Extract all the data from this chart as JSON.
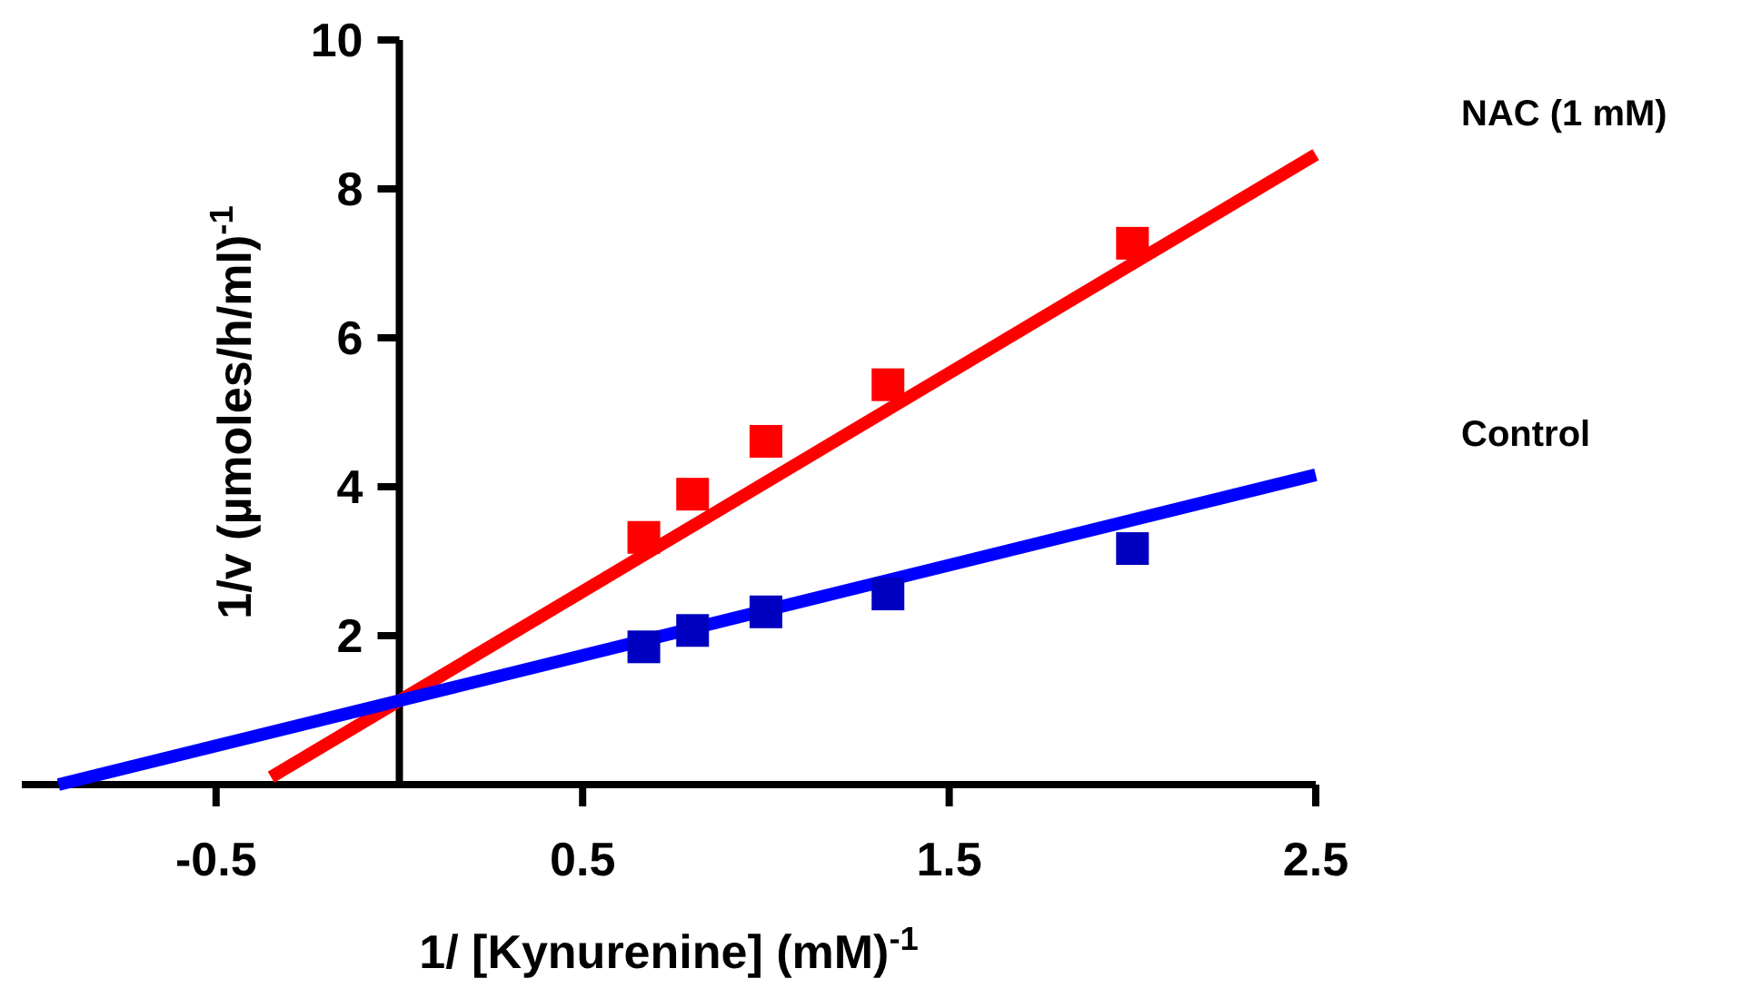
{
  "chart_data": {
    "type": "scatter",
    "xlabel": "1/ [Kynurenine] (mM)$^{-1}$",
    "ylabel": "1/v (µmoles/h/ml)$^{-1}$",
    "xlim": [
      -1.03,
      2.5
    ],
    "xticks": [
      -0.5,
      0.5,
      1.5,
      2.5
    ],
    "ylim": [
      0,
      10
    ],
    "yticks": [
      {
        "value": 0,
        "label": null
      },
      2,
      4,
      6,
      8,
      10
    ],
    "grid": false,
    "series": [
      {
        "type": "line",
        "name": "NAC (1 mM)",
        "color": "#ff0000",
        "marker": "none",
        "x": [
          -0.35,
          2.5
        ],
        "values": [
          0.1,
          8.46
        ]
      },
      {
        "type": "line",
        "name": "Control",
        "color": "#0000ff",
        "marker": "none",
        "x": [
          -0.93,
          2.5
        ],
        "values": [
          0,
          4.16
        ]
      },
      {
        "color": "#ff0000",
        "marker": "square",
        "x": [
          0.667,
          0.8,
          1.0,
          1.333,
          2.0
        ],
        "values": [
          3.32,
          3.9,
          4.61,
          5.37,
          7.27
        ]
      },
      {
        "color": "#0000c0",
        "marker": "square",
        "x": [
          0.667,
          0.8,
          1.0,
          1.333,
          2.0
        ],
        "values": [
          1.85,
          2.07,
          2.32,
          2.56,
          3.17
        ]
      }
    ]
  }
}
